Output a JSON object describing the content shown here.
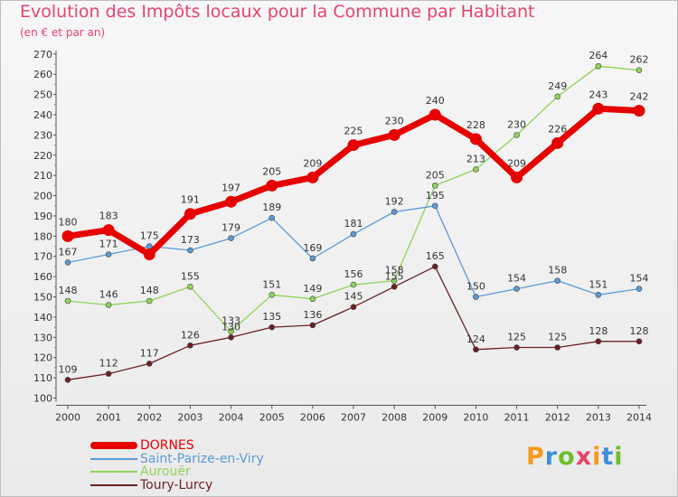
{
  "header": {
    "title": "Evolution des Impôts locaux pour la Commune par Habitant",
    "subtitle": "(en € et par an)"
  },
  "logo": {
    "text": "Proxiti",
    "colors": [
      "#f59a1b",
      "#3c8fd6",
      "#6cbf2a",
      "#e8436b"
    ]
  },
  "chart_data": {
    "type": "line",
    "title": "Evolution des Impôts locaux pour la Commune par Habitant",
    "subtitle": "(en € et par an)",
    "xlabel": "",
    "ylabel": "",
    "x": [
      "2000",
      "2001",
      "2002",
      "2003",
      "2004",
      "2005",
      "2006",
      "2007",
      "2008",
      "2009",
      "2010",
      "2011",
      "2012",
      "2013",
      "2014"
    ],
    "ylim": [
      100,
      270
    ],
    "yticks": [
      100,
      110,
      120,
      130,
      140,
      150,
      160,
      170,
      180,
      190,
      200,
      210,
      220,
      230,
      240,
      250,
      260,
      270
    ],
    "grid": false,
    "legend_position": "bottom-left",
    "series": [
      {
        "name": "DORNES",
        "color": "#e60000",
        "values": [
          180,
          183,
          171,
          191,
          197,
          205,
          209,
          225,
          230,
          240,
          228,
          209,
          226,
          243,
          242
        ],
        "labels": [
          "180",
          "183",
          "",
          "191",
          "197",
          "205",
          "209",
          "225",
          "230",
          "240",
          "228",
          "209",
          "226",
          "243",
          "242"
        ]
      },
      {
        "name": "Saint-Parize-en-Viry",
        "color": "#5b9bd5",
        "values": [
          167,
          171,
          175,
          173,
          179,
          189,
          169,
          181,
          192,
          195,
          150,
          154,
          158,
          151,
          154
        ],
        "labels": [
          "167",
          "171",
          "175",
          "173",
          "179",
          "189",
          "169",
          "181",
          "192",
          "195",
          "150",
          "154",
          "158",
          "151",
          "154"
        ]
      },
      {
        "name": "Aurouër",
        "color": "#8fd35a",
        "values": [
          148,
          146,
          148,
          155,
          133,
          151,
          149,
          156,
          158,
          205,
          213,
          230,
          249,
          264,
          262
        ],
        "labels": [
          "148",
          "146",
          "148",
          "155",
          "133",
          "151",
          "149",
          "156",
          "158",
          "205",
          "213",
          "230",
          "249",
          "264",
          "262"
        ]
      },
      {
        "name": "Toury-Lurcy",
        "color": "#6b1f1f",
        "values": [
          109,
          112,
          117,
          126,
          130,
          135,
          136,
          145,
          155,
          165,
          124,
          125,
          125,
          128,
          128
        ],
        "labels": [
          "109",
          "112",
          "117",
          "126",
          "130",
          "135",
          "136",
          "145",
          "155",
          "165",
          "124",
          "125",
          "125",
          "128",
          "128"
        ]
      }
    ]
  }
}
